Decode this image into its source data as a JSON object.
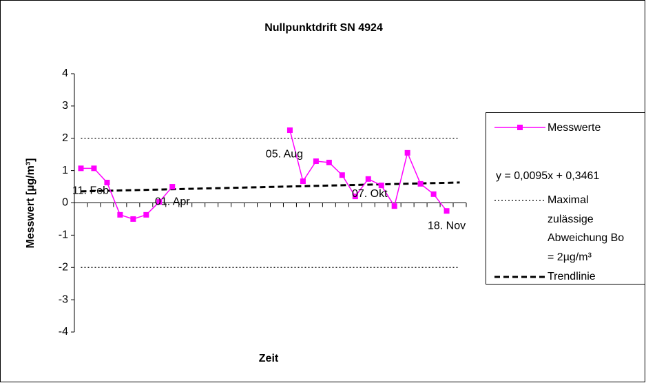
{
  "chart_data": {
    "type": "line",
    "title": "Nullpunktdrift SN 4924",
    "x_label": "Zeit",
    "y_label": "Messwert [µg/m³]",
    "categories": [
      null,
      null,
      null,
      null,
      null,
      null,
      null,
      null,
      null,
      null,
      null,
      null,
      null,
      null,
      null,
      null,
      null,
      null,
      null,
      null,
      null,
      null,
      null,
      null,
      null,
      null,
      null,
      null,
      null,
      null
    ],
    "series": [
      {
        "name": "Messwerte",
        "color": "#ff00ff",
        "values": [
          1.07,
          1.07,
          0.63,
          -0.37,
          -0.5,
          -0.37,
          0.03,
          0.5,
          null,
          null,
          null,
          null,
          null,
          null,
          null,
          null,
          2.25,
          0.67,
          1.29,
          1.25,
          0.86,
          0.2,
          0.74,
          0.54,
          -0.1,
          1.55,
          0.59,
          0.27,
          -0.25,
          null
        ],
        "point_labels": [
          "11. Feb",
          null,
          null,
          null,
          null,
          null,
          null,
          "01. Apr",
          null,
          null,
          null,
          null,
          null,
          null,
          null,
          null,
          "05. Aug",
          null,
          null,
          null,
          null,
          null,
          "07. Okt",
          null,
          null,
          null,
          null,
          null,
          "18. Nov",
          null
        ]
      },
      {
        "name": "Maximal zulässige Abweichung Bo = 2µg/m³",
        "color": "#000000",
        "limits": [
          2,
          -2
        ]
      }
    ],
    "trendline": {
      "name": "Trendlinie",
      "equation": "y = 0,0095x + 0,3461",
      "slope": 0.0095,
      "intercept": 0.3461,
      "color": "#000000"
    },
    "ylim": [
      -4,
      4
    ],
    "yticks": [
      -4,
      -3,
      -2,
      -1,
      0,
      1,
      2,
      3,
      4
    ],
    "grid": false,
    "legend": "right"
  }
}
